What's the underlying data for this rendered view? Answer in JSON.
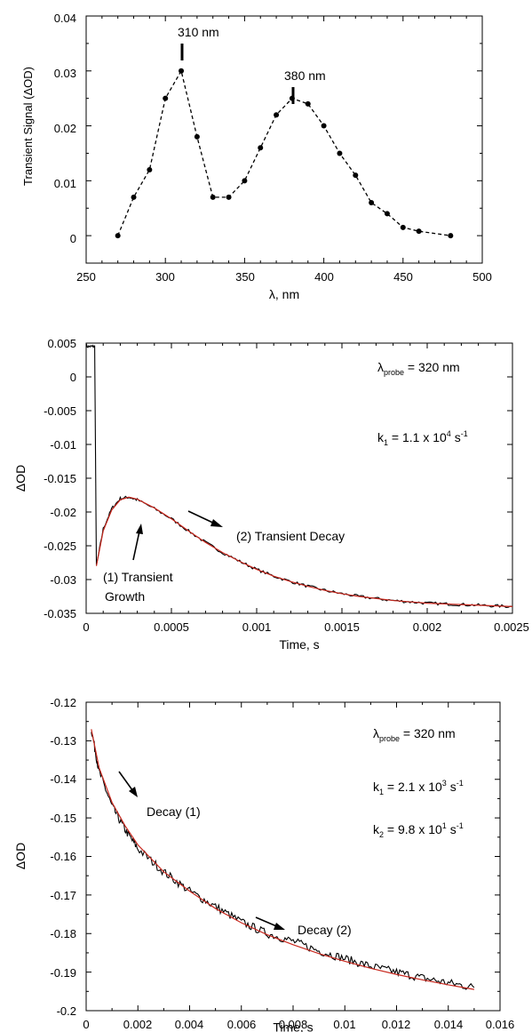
{
  "chart_data": [
    {
      "type": "line",
      "title": "",
      "xlabel": "λ, nm",
      "ylabel": "Transient Signal (ΔOD)",
      "xlim": [
        250,
        500
      ],
      "ylim": [
        -0.005,
        0.04
      ],
      "xticks": [
        "250",
        "300",
        "350",
        "400",
        "450",
        "500"
      ],
      "yticks": [
        "0",
        "0.01",
        "0.02",
        "0.03",
        "0.04"
      ],
      "line_style": "dashed with filled circle markers",
      "series": [
        {
          "x": [
            270,
            280,
            290,
            300,
            310,
            320,
            330,
            340,
            350,
            360,
            370,
            380,
            390,
            400,
            410,
            420,
            430,
            440,
            450,
            460,
            480
          ],
          "y": [
            0.0,
            0.007,
            0.012,
            0.025,
            0.03,
            0.018,
            0.007,
            0.007,
            0.01,
            0.016,
            0.022,
            0.025,
            0.024,
            0.02,
            0.015,
            0.011,
            0.006,
            0.004,
            0.0015,
            0.0008,
            0.0
          ]
        }
      ],
      "annotations": [
        {
          "text": "310 nm",
          "x": 310,
          "y": 0.03
        },
        {
          "text": "380 nm",
          "x": 380,
          "y": 0.025
        }
      ]
    },
    {
      "type": "line",
      "title": "",
      "xlabel": "Time, s",
      "ylabel": "ΔOD",
      "xlim": [
        0,
        0.0025
      ],
      "ylim": [
        -0.035,
        0.005
      ],
      "xticks": [
        "0",
        "0.0005",
        "0.001",
        "0.0015",
        "0.002",
        "0.0025"
      ],
      "yticks": [
        "-0.035",
        "-0.03",
        "-0.025",
        "-0.02",
        "-0.015",
        "-0.01",
        "-0.005",
        "0",
        "0.005"
      ],
      "series": [
        {
          "style": "black noisy trace",
          "x": [
            0,
            3e-05,
            5e-05,
            6e-05,
            0.0001,
            0.00015,
            0.0002,
            0.00025,
            0.0003,
            0.0004,
            0.0005,
            0.0006,
            0.0007,
            0.0008,
            0.0009,
            0.001,
            0.0011,
            0.0012,
            0.0013,
            0.0014,
            0.0015,
            0.0016,
            0.0017,
            0.0018,
            0.0019,
            0.002,
            0.0021,
            0.0022,
            0.0023,
            0.0024,
            0.0025
          ],
          "y": [
            0.0045,
            0.0045,
            0.0045,
            -0.028,
            -0.0225,
            -0.0195,
            -0.018,
            -0.0178,
            -0.0182,
            -0.0195,
            -0.021,
            -0.0228,
            -0.0245,
            -0.026,
            -0.0273,
            -0.0285,
            -0.0295,
            -0.0303,
            -0.031,
            -0.0316,
            -0.0321,
            -0.0325,
            -0.0328,
            -0.0331,
            -0.0333,
            -0.0335,
            -0.0336,
            -0.0337,
            -0.0338,
            -0.0339,
            -0.034
          ]
        },
        {
          "style": "red fit",
          "x": [
            6e-05,
            0.0001,
            0.00015,
            0.0002,
            0.00025,
            0.0003,
            0.0004,
            0.0005,
            0.0006,
            0.0007,
            0.0008,
            0.0009,
            0.001,
            0.0011,
            0.0012,
            0.0013,
            0.0014,
            0.0015,
            0.0016,
            0.0017,
            0.0018,
            0.0019,
            0.002,
            0.0021,
            0.0022,
            0.0023,
            0.0024,
            0.0025
          ],
          "y": [
            -0.028,
            -0.0228,
            -0.0197,
            -0.0182,
            -0.0178,
            -0.0181,
            -0.0194,
            -0.021,
            -0.0228,
            -0.0245,
            -0.026,
            -0.0273,
            -0.0285,
            -0.0295,
            -0.0303,
            -0.031,
            -0.0316,
            -0.0321,
            -0.0325,
            -0.0328,
            -0.0331,
            -0.0333,
            -0.0335,
            -0.0336,
            -0.0337,
            -0.0338,
            -0.0339,
            -0.034
          ]
        }
      ],
      "annotations": {
        "probe": {
          "prefix": "λ",
          "sub": "probe",
          "suffix": " = 320 nm"
        },
        "k1": {
          "prefix": "k",
          "sub": "1",
          "mid": " = 1.1 x 10",
          "sup1": "4",
          "s": " s",
          "sup2": "-1"
        },
        "growth_line1": "(1) Transient",
        "growth_line2": "Growth",
        "decay": "(2) Transient Decay"
      }
    },
    {
      "type": "line",
      "title": "",
      "xlabel": "Time, s",
      "ylabel": "ΔOD",
      "xlim": [
        0,
        0.016
      ],
      "ylim": [
        -0.2,
        -0.12
      ],
      "xticks": [
        "0",
        "0.002",
        "0.004",
        "0.006",
        "0.008",
        "0.01",
        "0.012",
        "0.014",
        "0.016"
      ],
      "yticks": [
        "-0.2",
        "-0.19",
        "-0.18",
        "-0.17",
        "-0.16",
        "-0.15",
        "-0.14",
        "-0.13",
        "-0.12"
      ],
      "series": [
        {
          "style": "black noisy trace",
          "x": [
            0.0002,
            0.0005,
            0.001,
            0.0015,
            0.002,
            0.003,
            0.004,
            0.005,
            0.006,
            0.007,
            0.008,
            0.009,
            0.01,
            0.011,
            0.012,
            0.013,
            0.014,
            0.015
          ],
          "y": [
            -0.127,
            -0.138,
            -0.147,
            -0.153,
            -0.158,
            -0.164,
            -0.169,
            -0.173,
            -0.177,
            -0.18,
            -0.182,
            -0.1845,
            -0.1865,
            -0.1885,
            -0.19,
            -0.1915,
            -0.1928,
            -0.194
          ]
        },
        {
          "style": "red fit",
          "x": [
            0.0002,
            0.0005,
            0.001,
            0.0015,
            0.002,
            0.003,
            0.004,
            0.005,
            0.006,
            0.007,
            0.008,
            0.009,
            0.01,
            0.011,
            0.012,
            0.013,
            0.014,
            0.015
          ],
          "y": [
            -0.127,
            -0.137,
            -0.146,
            -0.152,
            -0.157,
            -0.164,
            -0.169,
            -0.1735,
            -0.1772,
            -0.1803,
            -0.1829,
            -0.1852,
            -0.1872,
            -0.189,
            -0.1906,
            -0.192,
            -0.1933,
            -0.1945
          ]
        }
      ],
      "annotations": {
        "probe": {
          "prefix": "λ",
          "sub": "probe",
          "suffix": " = 320 nm"
        },
        "k1": {
          "prefix": "k",
          "sub": "1",
          "mid": " = 2.1 x 10",
          "sup1": "3",
          "s": " s",
          "sup2": "-1"
        },
        "k2": {
          "prefix": "k",
          "sub": "2",
          "mid": " = 9.8 x 10",
          "sup1": "1",
          "s": " s",
          "sup2": "-1"
        },
        "decay1": "Decay (1)",
        "decay2": "Decay (2)"
      }
    }
  ]
}
